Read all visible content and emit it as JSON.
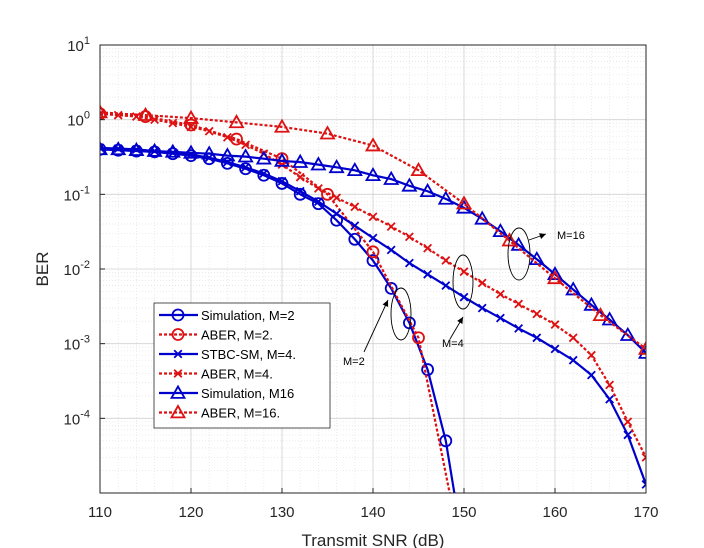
{
  "chart_data": {
    "type": "line",
    "xlabel": "Transmit SNR (dB)",
    "ylabel": "BER",
    "xlim": [
      110,
      170
    ],
    "ylim": [
      1e-05,
      10
    ],
    "yscale": "log",
    "grid": "major and minor",
    "legend_placement": "lower-left",
    "x_ticks": [
      "110",
      "120",
      "130",
      "140",
      "150",
      "160",
      "170"
    ],
    "y_ticks": [
      {
        "base": "10",
        "exp": "1"
      },
      {
        "base": "10",
        "exp": "0"
      },
      {
        "base": "10",
        "exp": "-1"
      },
      {
        "base": "10",
        "exp": "-2"
      },
      {
        "base": "10",
        "exp": "-3"
      },
      {
        "base": "10",
        "exp": "-4"
      }
    ],
    "series": [
      {
        "name": "Simulation, M=2",
        "color": "#0000cc",
        "dash": "solid",
        "marker": "circle",
        "x": [
          110,
          112,
          114,
          116,
          118,
          120,
          122,
          124,
          126,
          128,
          130,
          132,
          134,
          136,
          138,
          140,
          142,
          144,
          146,
          148,
          149
        ],
        "y": [
          0.4,
          0.39,
          0.38,
          0.37,
          0.35,
          0.33,
          0.3,
          0.26,
          0.22,
          0.18,
          0.14,
          0.1,
          0.075,
          0.045,
          0.025,
          0.013,
          0.0055,
          0.0019,
          0.00045,
          5e-05,
          9e-06
        ]
      },
      {
        "name": "ABER, M=2.",
        "color": "#dd1111",
        "dash": "dotted",
        "marker": "circle",
        "x": [
          110,
          115,
          120,
          125,
          130,
          135,
          140,
          145,
          148.5
        ],
        "y": [
          1.2,
          1.1,
          0.85,
          0.55,
          0.3,
          0.1,
          0.017,
          0.0012,
          9e-06
        ]
      },
      {
        "name": "STBC-SM, M=4.",
        "color": "#0000cc",
        "dash": "solid",
        "marker": "x",
        "x": [
          110,
          112,
          114,
          116,
          118,
          120,
          122,
          124,
          126,
          128,
          130,
          132,
          134,
          136,
          138,
          140,
          142,
          144,
          146,
          148,
          150,
          152,
          154,
          156,
          158,
          160,
          162,
          164,
          166,
          168,
          170
        ],
        "y": [
          0.42,
          0.41,
          0.4,
          0.38,
          0.36,
          0.34,
          0.31,
          0.27,
          0.23,
          0.19,
          0.15,
          0.11,
          0.08,
          0.055,
          0.038,
          0.026,
          0.018,
          0.012,
          0.0085,
          0.006,
          0.0042,
          0.003,
          0.0022,
          0.0016,
          0.0012,
          0.00085,
          0.0006,
          0.00038,
          0.00018,
          6e-05,
          1.3e-05
        ]
      },
      {
        "name": "ABER, M=4.",
        "color": "#dd1111",
        "dash": "dotted",
        "marker": "x",
        "x": [
          110,
          112,
          114,
          116,
          118,
          120,
          122,
          124,
          126,
          128,
          130,
          132,
          134,
          136,
          138,
          140,
          142,
          144,
          146,
          148,
          150,
          152,
          154,
          156,
          158,
          160,
          162,
          164,
          166,
          168,
          170
        ],
        "y": [
          1.2,
          1.15,
          1.1,
          1.0,
          0.9,
          0.8,
          0.7,
          0.58,
          0.46,
          0.35,
          0.25,
          0.17,
          0.12,
          0.09,
          0.068,
          0.05,
          0.037,
          0.027,
          0.019,
          0.013,
          0.0092,
          0.0065,
          0.0046,
          0.0034,
          0.0025,
          0.0018,
          0.0012,
          0.0007,
          0.00028,
          9e-05,
          3e-05
        ]
      },
      {
        "name": "Simulation, M16",
        "color": "#0000cc",
        "dash": "solid",
        "marker": "triangle",
        "x": [
          110,
          112,
          114,
          116,
          118,
          120,
          122,
          124,
          126,
          128,
          130,
          132,
          134,
          136,
          138,
          140,
          142,
          144,
          146,
          148,
          150,
          152,
          154,
          156,
          158,
          160,
          162,
          164,
          166,
          168,
          170
        ],
        "y": [
          0.4,
          0.4,
          0.39,
          0.38,
          0.37,
          0.36,
          0.35,
          0.33,
          0.32,
          0.3,
          0.28,
          0.27,
          0.25,
          0.23,
          0.21,
          0.18,
          0.16,
          0.13,
          0.11,
          0.087,
          0.066,
          0.047,
          0.032,
          0.021,
          0.0135,
          0.0085,
          0.0053,
          0.0033,
          0.0021,
          0.0013,
          0.00075
        ]
      },
      {
        "name": "ABER, M=16.",
        "color": "#dd1111",
        "dash": "dotted",
        "marker": "triangle",
        "x": [
          110,
          115,
          120,
          125,
          130,
          135,
          140,
          145,
          150,
          155,
          160,
          165,
          170
        ],
        "y": [
          1.25,
          1.15,
          1.05,
          0.92,
          0.8,
          0.65,
          0.45,
          0.21,
          0.075,
          0.024,
          0.0075,
          0.0024,
          0.00085
        ]
      }
    ],
    "annotations": [
      {
        "text": "M=2",
        "x": 139,
        "y": 0.0013
      },
      {
        "text": "M=4",
        "x": 150.5,
        "y": 0.00135
      },
      {
        "text": "M=16",
        "x": 160,
        "y": 0.036
      }
    ],
    "legend_entries": [
      {
        "label": "Simulation, M=2",
        "color": "#0000cc",
        "dash": "solid",
        "marker": "circle"
      },
      {
        "label": "ABER, M=2.",
        "color": "#dd1111",
        "dash": "dotted",
        "marker": "circle"
      },
      {
        "label": "STBC-SM, M=4.",
        "color": "#0000cc",
        "dash": "solid",
        "marker": "x"
      },
      {
        "label": "ABER, M=4.",
        "color": "#dd1111",
        "dash": "dotted",
        "marker": "x"
      },
      {
        "label": "Simulation, M16",
        "color": "#0000cc",
        "dash": "solid",
        "marker": "triangle"
      },
      {
        "label": "ABER, M=16.",
        "color": "#dd1111",
        "dash": "dotted",
        "marker": "triangle"
      }
    ]
  }
}
